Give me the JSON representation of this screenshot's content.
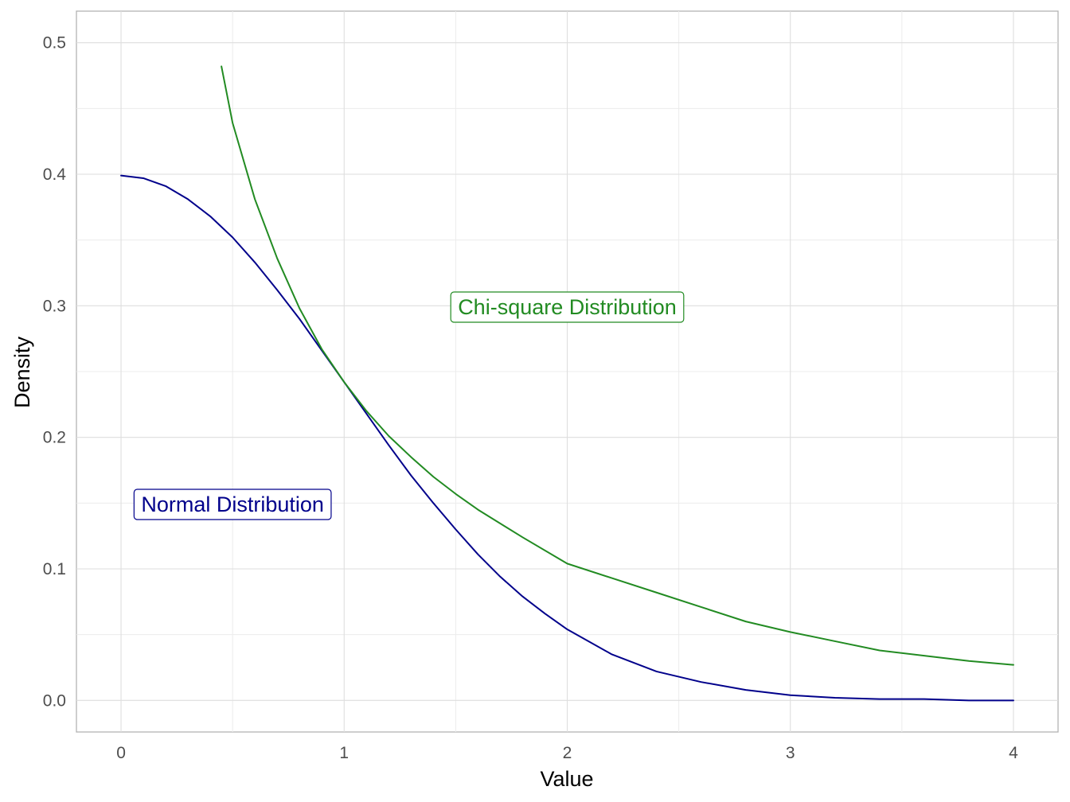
{
  "chart_data": {
    "type": "line",
    "title": "",
    "xlabel": "Value",
    "ylabel": "Density",
    "xlim": [
      -0.2,
      4.2
    ],
    "ylim": [
      -0.024,
      0.524
    ],
    "x_ticks": [
      0,
      1,
      2,
      3,
      4
    ],
    "x_tick_labels": [
      "0",
      "1",
      "2",
      "3",
      "4"
    ],
    "y_ticks": [
      0.0,
      0.1,
      0.2,
      0.3,
      0.4,
      0.5
    ],
    "y_tick_labels": [
      "0.0",
      "0.1",
      "0.2",
      "0.3",
      "0.4",
      "0.5"
    ],
    "grid": true,
    "legend": "none",
    "series": [
      {
        "color": "#00008B",
        "x": [
          0,
          0.1,
          0.2,
          0.3,
          0.4,
          0.5,
          0.6,
          0.7,
          0.8,
          0.9,
          1.0,
          1.1,
          1.2,
          1.3,
          1.4,
          1.5,
          1.6,
          1.7,
          1.8,
          1.9,
          2.0,
          2.2,
          2.4,
          2.6,
          2.8,
          3.0,
          3.2,
          3.4,
          3.6,
          3.8,
          4.0
        ],
        "y": [
          0.399,
          0.397,
          0.391,
          0.381,
          0.368,
          0.352,
          0.333,
          0.312,
          0.29,
          0.266,
          0.242,
          0.218,
          0.194,
          0.171,
          0.15,
          0.13,
          0.111,
          0.094,
          0.079,
          0.066,
          0.054,
          0.035,
          0.022,
          0.014,
          0.008,
          0.004,
          0.002,
          0.001,
          0.001,
          0.0,
          0.0
        ]
      },
      {
        "color": "#228B22",
        "x": [
          0.45,
          0.5,
          0.6,
          0.7,
          0.8,
          0.9,
          1.0,
          1.1,
          1.2,
          1.3,
          1.4,
          1.5,
          1.6,
          1.8,
          2.0,
          2.2,
          2.4,
          2.6,
          2.8,
          3.0,
          3.2,
          3.4,
          3.6,
          3.8,
          4.0
        ],
        "y": [
          0.482,
          0.439,
          0.381,
          0.336,
          0.298,
          0.267,
          0.242,
          0.22,
          0.201,
          0.185,
          0.17,
          0.157,
          0.145,
          0.124,
          0.104,
          0.093,
          0.082,
          0.071,
          0.06,
          0.052,
          0.045,
          0.038,
          0.034,
          0.03,
          0.027
        ]
      }
    ],
    "annotations": [
      {
        "text": "Normal Distribution",
        "x": 0.5,
        "y": 0.149,
        "color": "#00008B"
      },
      {
        "text": "Chi-square Distribution",
        "x": 2.0,
        "y": 0.299,
        "color": "#228B22"
      }
    ]
  }
}
